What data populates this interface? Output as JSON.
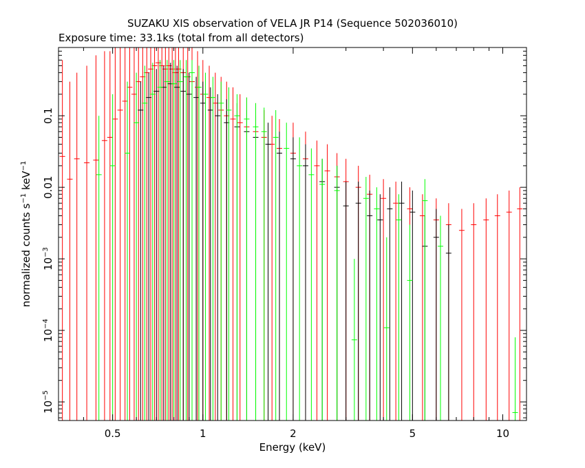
{
  "chart_data": {
    "type": "scatter",
    "title": "SUZAKU XIS observation of VELA JR P14 (Sequence 502036010)",
    "subtitle": "Exposure time: 33.1ks (total from all detectors)",
    "xlabel": "Energy (keV)",
    "ylabel_main": "normalized counts s",
    "ylabel_sup1": "−1",
    "ylabel_mid": " keV",
    "ylabel_sup2": "−1",
    "xscale": "log",
    "yscale": "log",
    "xlim": [
      0.33,
      12.0
    ],
    "ylim": [
      5.5e-06,
      0.9
    ],
    "grid": false,
    "x_ticks": [
      {
        "value": 0.5,
        "label": "0.5"
      },
      {
        "value": 1,
        "label": "1"
      },
      {
        "value": 2,
        "label": "2"
      },
      {
        "value": 5,
        "label": "5"
      },
      {
        "value": 10,
        "label": "10"
      }
    ],
    "y_ticks": [
      {
        "value": 0.1,
        "mant": "0.1",
        "exp": ""
      },
      {
        "value": 0.01,
        "mant": "0.01",
        "exp": ""
      },
      {
        "value": 0.001,
        "mant": "10",
        "exp": "−3"
      },
      {
        "value": 0.0001,
        "mant": "10",
        "exp": "−4"
      },
      {
        "value": 1e-05,
        "mant": "10",
        "exp": "−5"
      }
    ],
    "series": [
      {
        "color": "#ff0000",
        "points": [
          [
            0.34,
            0.027,
            5.5e-06,
            0.6
          ],
          [
            0.36,
            0.013,
            5.5e-06,
            0.3
          ],
          [
            0.38,
            0.025,
            5.5e-06,
            0.4
          ],
          [
            0.41,
            0.022,
            5.5e-06,
            0.5
          ],
          [
            0.44,
            0.024,
            5.5e-06,
            0.7
          ],
          [
            0.47,
            0.045,
            5.5e-06,
            0.8
          ],
          [
            0.49,
            0.05,
            5.5e-06,
            0.8
          ],
          [
            0.51,
            0.09,
            5.5e-06,
            0.9
          ],
          [
            0.53,
            0.12,
            5.5e-06,
            0.9
          ],
          [
            0.55,
            0.16,
            5.5e-06,
            0.9
          ],
          [
            0.57,
            0.25,
            5.5e-06,
            0.9
          ],
          [
            0.59,
            0.2,
            5.5e-06,
            0.9
          ],
          [
            0.61,
            0.3,
            5.5e-06,
            0.9
          ],
          [
            0.63,
            0.35,
            5.5e-06,
            0.9
          ],
          [
            0.65,
            0.4,
            5.5e-06,
            0.9
          ],
          [
            0.67,
            0.45,
            5.5e-06,
            0.9
          ],
          [
            0.69,
            0.5,
            5.5e-06,
            0.9
          ],
          [
            0.71,
            0.55,
            5.5e-06,
            0.9
          ],
          [
            0.73,
            0.5,
            5.5e-06,
            0.9
          ],
          [
            0.75,
            0.45,
            5.5e-06,
            0.9
          ],
          [
            0.77,
            0.5,
            5.5e-06,
            0.9
          ],
          [
            0.79,
            0.45,
            5.5e-06,
            0.9
          ],
          [
            0.81,
            0.4,
            5.5e-06,
            0.9
          ],
          [
            0.83,
            0.45,
            5.5e-06,
            0.9
          ],
          [
            0.86,
            0.4,
            5.5e-06,
            0.9
          ],
          [
            0.89,
            0.35,
            5.5e-06,
            0.9
          ],
          [
            0.92,
            0.3,
            5.5e-06,
            0.9
          ],
          [
            0.96,
            0.25,
            5.5e-06,
            0.8
          ],
          [
            1.0,
            0.2,
            5.5e-06,
            0.6
          ],
          [
            1.05,
            0.18,
            5.5e-06,
            0.5
          ],
          [
            1.1,
            0.15,
            5.5e-06,
            0.4
          ],
          [
            1.15,
            0.12,
            5.5e-06,
            0.35
          ],
          [
            1.2,
            0.1,
            5.5e-06,
            0.3
          ],
          [
            1.26,
            0.09,
            5.5e-06,
            0.25
          ],
          [
            1.33,
            0.08,
            5.5e-06,
            0.2
          ],
          [
            1.4,
            0.07,
            5.5e-06,
            0.18
          ],
          [
            1.5,
            0.06,
            5.5e-06,
            0.15
          ],
          [
            1.6,
            0.05,
            5.5e-06,
            0.12
          ],
          [
            1.7,
            0.04,
            5.5e-06,
            0.1
          ],
          [
            1.8,
            0.035,
            5.5e-06,
            0.09
          ],
          [
            2.0,
            0.03,
            5.5e-06,
            0.08
          ],
          [
            2.2,
            0.025,
            5.5e-06,
            0.06
          ],
          [
            2.4,
            0.02,
            5.5e-06,
            0.045
          ],
          [
            2.6,
            0.017,
            5.5e-06,
            0.04
          ],
          [
            2.8,
            0.014,
            5.5e-06,
            0.03
          ],
          [
            3.0,
            0.012,
            5.5e-06,
            0.025
          ],
          [
            3.3,
            0.01,
            5.5e-06,
            0.02
          ],
          [
            3.6,
            0.008,
            5.5e-06,
            0.015
          ],
          [
            4.0,
            0.007,
            5.5e-06,
            0.013
          ],
          [
            4.4,
            0.006,
            5.5e-06,
            0.012
          ],
          [
            4.9,
            0.005,
            5.5e-06,
            0.01
          ],
          [
            5.4,
            0.004,
            5.5e-06,
            0.008
          ],
          [
            6.0,
            0.0035,
            5.5e-06,
            0.007
          ],
          [
            6.6,
            0.003,
            5.5e-06,
            0.006
          ],
          [
            7.3,
            0.0025,
            5.5e-06,
            0.005
          ],
          [
            8.0,
            0.003,
            5.5e-06,
            0.006
          ],
          [
            8.8,
            0.0035,
            5.5e-06,
            0.007
          ],
          [
            9.6,
            0.004,
            5.5e-06,
            0.008
          ],
          [
            10.5,
            0.0045,
            5.5e-06,
            0.009
          ],
          [
            11.4,
            0.005,
            5.5e-06,
            0.01
          ]
        ]
      },
      {
        "color": "#000000",
        "points": [
          [
            0.62,
            0.12,
            5.5e-06,
            0.3
          ],
          [
            0.66,
            0.18,
            5.5e-06,
            0.4
          ],
          [
            0.7,
            0.22,
            5.5e-06,
            0.45
          ],
          [
            0.74,
            0.25,
            5.5e-06,
            0.5
          ],
          [
            0.78,
            0.28,
            5.5e-06,
            0.55
          ],
          [
            0.82,
            0.25,
            5.5e-06,
            0.5
          ],
          [
            0.86,
            0.22,
            5.5e-06,
            0.45
          ],
          [
            0.9,
            0.2,
            5.5e-06,
            0.4
          ],
          [
            0.95,
            0.18,
            5.5e-06,
            0.35
          ],
          [
            1.0,
            0.15,
            5.5e-06,
            0.3
          ],
          [
            1.06,
            0.12,
            5.5e-06,
            0.25
          ],
          [
            1.12,
            0.1,
            5.5e-06,
            0.2
          ],
          [
            1.2,
            0.08,
            5.5e-06,
            0.17
          ],
          [
            1.3,
            0.07,
            5.5e-06,
            0.15
          ],
          [
            1.4,
            0.06,
            5.5e-06,
            0.12
          ],
          [
            1.5,
            0.05,
            5.5e-06,
            0.1
          ],
          [
            1.65,
            0.04,
            5.5e-06,
            0.08
          ],
          [
            1.8,
            0.03,
            5.5e-06,
            0.06
          ],
          [
            2.0,
            0.025,
            5.5e-06,
            0.05
          ],
          [
            2.2,
            0.02,
            5.5e-06,
            0.04
          ],
          [
            2.5,
            0.012,
            5.5e-06,
            0.025
          ],
          [
            2.8,
            0.01,
            5.5e-06,
            0.02
          ],
          [
            3.0,
            0.0055,
            5.5e-06,
            0.012
          ],
          [
            3.3,
            0.006,
            5.5e-06,
            0.012
          ],
          [
            3.6,
            0.004,
            5.5e-06,
            0.009
          ],
          [
            3.9,
            0.0035,
            5.5e-06,
            0.008
          ],
          [
            4.2,
            0.005,
            5.5e-06,
            0.01
          ],
          [
            4.6,
            0.006,
            5.5e-06,
            0.012
          ],
          [
            5.0,
            0.0045,
            5.5e-06,
            0.009
          ],
          [
            5.5,
            0.0015,
            5.5e-06,
            0.004
          ],
          [
            6.0,
            0.002,
            5.5e-06,
            0.005
          ],
          [
            6.6,
            0.0012,
            5.5e-06,
            0.003
          ]
        ]
      },
      {
        "color": "#00ff00",
        "points": [
          [
            0.45,
            0.015,
            5.5e-06,
            0.1
          ],
          [
            0.5,
            0.02,
            5.5e-06,
            0.2
          ],
          [
            0.56,
            0.03,
            5.5e-06,
            0.3
          ],
          [
            0.6,
            0.08,
            5.5e-06,
            0.4
          ],
          [
            0.64,
            0.15,
            5.5e-06,
            0.5
          ],
          [
            0.68,
            0.2,
            5.5e-06,
            0.55
          ],
          [
            0.72,
            0.25,
            5.5e-06,
            0.6
          ],
          [
            0.76,
            0.3,
            5.5e-06,
            0.6
          ],
          [
            0.8,
            0.28,
            5.5e-06,
            0.6
          ],
          [
            0.84,
            0.3,
            5.5e-06,
            0.6
          ],
          [
            0.88,
            0.35,
            5.5e-06,
            0.6
          ],
          [
            0.92,
            0.4,
            5.5e-06,
            0.6
          ],
          [
            0.97,
            0.25,
            5.5e-06,
            0.5
          ],
          [
            1.02,
            0.2,
            5.5e-06,
            0.4
          ],
          [
            1.08,
            0.18,
            5.5e-06,
            0.35
          ],
          [
            1.15,
            0.15,
            5.5e-06,
            0.3
          ],
          [
            1.22,
            0.12,
            5.5e-06,
            0.25
          ],
          [
            1.3,
            0.1,
            5.5e-06,
            0.2
          ],
          [
            1.4,
            0.09,
            5.5e-06,
            0.18
          ],
          [
            1.5,
            0.07,
            5.5e-06,
            0.15
          ],
          [
            1.6,
            0.06,
            5.5e-06,
            0.13
          ],
          [
            1.75,
            0.05,
            5.5e-06,
            0.12
          ],
          [
            1.9,
            0.035,
            5.5e-06,
            0.08
          ],
          [
            2.1,
            0.02,
            5.5e-06,
            0.05
          ],
          [
            2.3,
            0.015,
            5.5e-06,
            0.035
          ],
          [
            2.5,
            0.011,
            5.5e-06,
            0.025
          ],
          [
            2.8,
            0.009,
            5.5e-06,
            0.02
          ],
          [
            3.2,
            7.38e-05,
            5.5e-06,
            0.001
          ],
          [
            3.5,
            0.007,
            5.5e-06,
            0.014
          ],
          [
            3.8,
            0.005,
            5.5e-06,
            0.01
          ],
          [
            4.1,
            0.000109,
            5.5e-06,
            0.002
          ],
          [
            4.5,
            0.0035,
            5.5e-06,
            0.008
          ],
          [
            4.9,
            0.0005,
            5.5e-06,
            0.003
          ],
          [
            5.5,
            0.0065,
            5.5e-06,
            0.013
          ],
          [
            6.2,
            0.0015,
            5.5e-06,
            0.004
          ],
          [
            11.0,
            7.1e-06,
            5.5e-06,
            8e-05
          ]
        ]
      }
    ]
  }
}
